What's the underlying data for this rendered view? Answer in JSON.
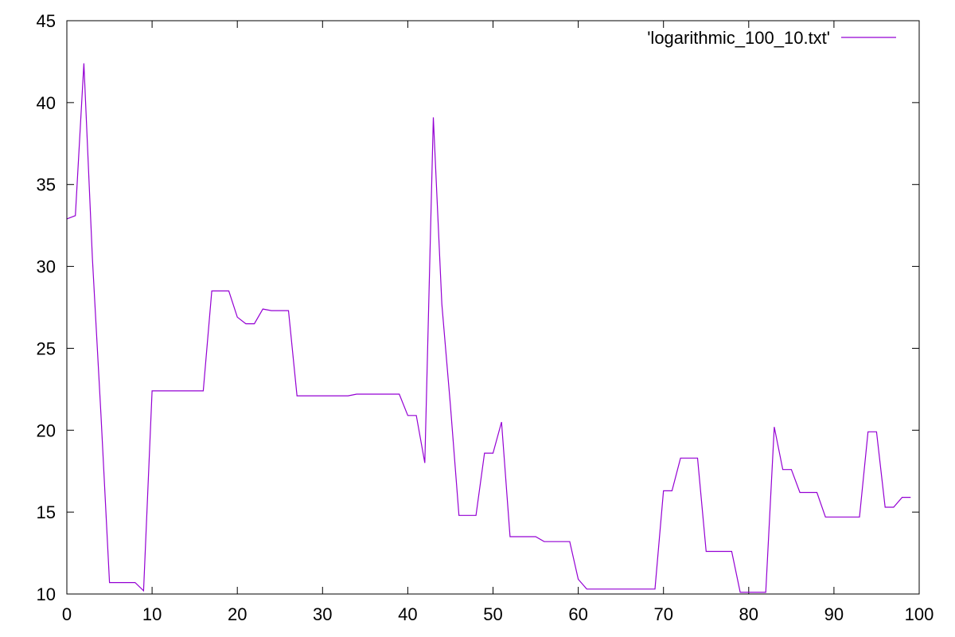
{
  "chart_data": {
    "type": "line",
    "title": "",
    "xlabel": "",
    "ylabel": "",
    "xlim": [
      0,
      100
    ],
    "ylim": [
      10,
      45
    ],
    "x_ticks": [
      0,
      10,
      20,
      30,
      40,
      50,
      60,
      70,
      80,
      90,
      100
    ],
    "y_ticks": [
      10,
      15,
      20,
      25,
      30,
      35,
      40,
      45
    ],
    "x_tick_labels": [
      "0",
      "10",
      "20",
      "30",
      "40",
      "50",
      "60",
      "70",
      "80",
      "90",
      "100"
    ],
    "y_tick_labels": [
      "10",
      "15",
      "20",
      "25",
      "30",
      "35",
      "40",
      "45"
    ],
    "grid": false,
    "legend_position": "top-right",
    "series_color": "#9400d3",
    "series": [
      {
        "name": "'logarithmic_100_10.txt'",
        "x": [
          0,
          1,
          2,
          3,
          4,
          5,
          6,
          7,
          8,
          9,
          10,
          11,
          12,
          13,
          14,
          15,
          16,
          17,
          18,
          19,
          20,
          21,
          22,
          23,
          24,
          25,
          26,
          27,
          28,
          29,
          30,
          31,
          32,
          33,
          34,
          35,
          36,
          37,
          38,
          39,
          40,
          41,
          42,
          43,
          44,
          45,
          46,
          47,
          48,
          49,
          50,
          51,
          52,
          53,
          54,
          55,
          56,
          57,
          58,
          59,
          60,
          61,
          62,
          63,
          64,
          65,
          66,
          67,
          68,
          69,
          70,
          71,
          72,
          73,
          74,
          75,
          76,
          77,
          78,
          79,
          80,
          81,
          82,
          83,
          84,
          85,
          86,
          87,
          88,
          89,
          90,
          91,
          92,
          93,
          94,
          95,
          96,
          97,
          98,
          99
        ],
        "values": [
          32.9,
          33.1,
          42.4,
          30.5,
          21.0,
          10.7,
          10.7,
          10.7,
          10.7,
          10.2,
          22.4,
          22.4,
          22.4,
          22.4,
          22.4,
          22.4,
          22.4,
          28.5,
          28.5,
          28.5,
          26.9,
          26.5,
          26.5,
          27.4,
          27.3,
          27.3,
          27.3,
          22.1,
          22.1,
          22.1,
          22.1,
          22.1,
          22.1,
          22.1,
          22.2,
          22.2,
          22.2,
          22.2,
          22.2,
          22.2,
          20.9,
          20.9,
          18.0,
          39.1,
          27.7,
          21.5,
          14.8,
          14.8,
          14.8,
          18.6,
          18.6,
          20.5,
          13.5,
          13.5,
          13.5,
          13.5,
          13.2,
          13.2,
          13.2,
          13.2,
          10.9,
          10.3,
          10.3,
          10.3,
          10.3,
          10.3,
          10.3,
          10.3,
          10.3,
          10.3,
          16.3,
          16.3,
          18.3,
          18.3,
          18.3,
          12.6,
          12.6,
          12.6,
          12.6,
          10.1,
          10.1,
          10.1,
          10.1,
          20.2,
          17.6,
          17.6,
          16.2,
          16.2,
          16.2,
          14.7,
          14.7,
          14.7,
          14.7,
          14.7,
          19.9,
          19.9,
          15.3,
          15.3,
          15.9,
          15.9
        ]
      }
    ]
  }
}
